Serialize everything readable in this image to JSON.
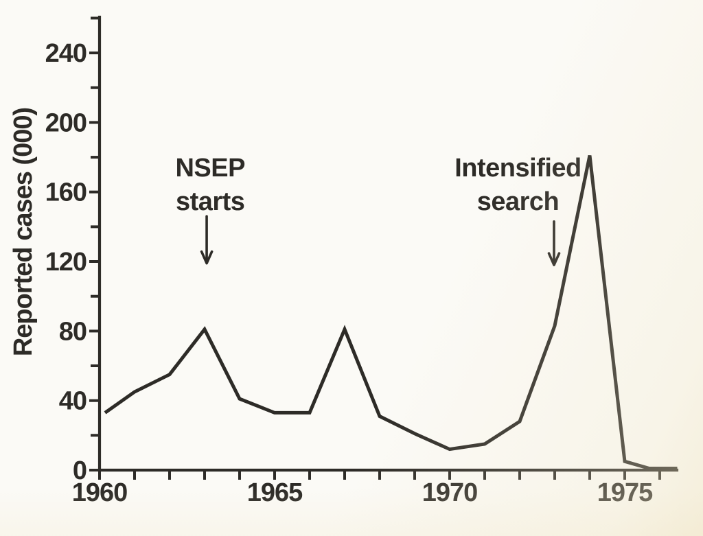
{
  "colors": {
    "ink": "#2d2b27",
    "paper": "#fbfaf6",
    "edge_tint": "#efe4c6"
  },
  "chart_data": {
    "type": "line",
    "title": "",
    "xlabel": "",
    "ylabel": "Reported cases (000)",
    "x": [
      1960,
      1961,
      1962,
      1963,
      1964,
      1965,
      1966,
      1967,
      1968,
      1969,
      1970,
      1971,
      1972,
      1973,
      1974,
      1975,
      1975.7,
      1976.5
    ],
    "y": [
      33,
      45,
      55,
      81,
      41,
      33,
      33,
      81,
      31,
      21,
      12,
      15,
      28,
      83,
      181,
      5,
      1,
      1
    ],
    "xlim": [
      1960,
      1976.5
    ],
    "ylim": [
      0,
      260
    ],
    "grid": false,
    "legend": false,
    "x_axis": {
      "tick_years": [
        1960,
        1961,
        1962,
        1963,
        1964,
        1965,
        1966,
        1967,
        1968,
        1969,
        1970,
        1971,
        1972,
        1973,
        1974,
        1975,
        1976
      ],
      "labeled_ticks": [
        {
          "year": 1960,
          "label": "1960"
        },
        {
          "year": 1965,
          "label": "1965"
        },
        {
          "year": 1970,
          "label": "1970"
        },
        {
          "year": 1975,
          "label": "1975"
        }
      ]
    },
    "y_axis": {
      "major_ticks": [
        0,
        40,
        80,
        120,
        160,
        200,
        240
      ],
      "major_tick_labels": [
        "0",
        "40",
        "80",
        "120",
        "160",
        "200",
        "240"
      ],
      "minor_ticks": [
        20,
        60,
        100,
        140,
        180,
        220,
        260
      ]
    },
    "annotations": [
      {
        "lines": [
          "NSEP",
          "starts"
        ],
        "text_center_year": 1963.16,
        "arrow_year": 1963.06,
        "arrow_from_value": 146,
        "arrow_tip_value": 119
      },
      {
        "lines": [
          "Intensified",
          "search"
        ],
        "text_center_year": 1971.95,
        "arrow_year": 1972.98,
        "arrow_from_value": 143,
        "arrow_tip_value": 118
      }
    ]
  }
}
